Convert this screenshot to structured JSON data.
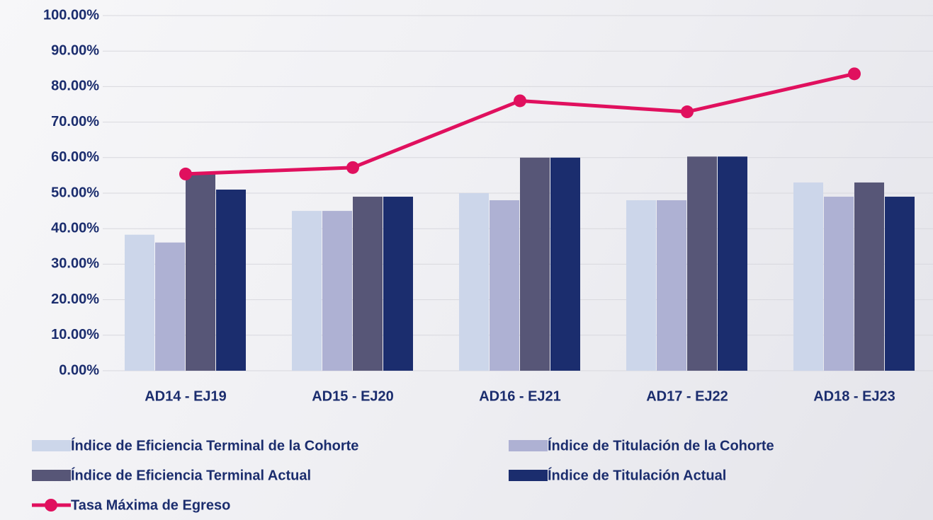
{
  "chart_data": {
    "type": "bar",
    "categories": [
      "AD14 - EJ19",
      "AD15 - EJ20",
      "AD16 - EJ21",
      "AD17 - EJ22",
      "AD18 - EJ23"
    ],
    "series": [
      {
        "name": "Índice de Eficiencia Terminal de la Cohorte",
        "color": "#ccd6ea",
        "values": [
          38.3,
          45,
          50,
          48,
          53
        ]
      },
      {
        "name": "Índice de Titulación de la Cohorte",
        "color": "#aeb1d3",
        "values": [
          36.1,
          45,
          48,
          48,
          49
        ]
      },
      {
        "name": "Índice de Eficiencia Terminal Actual",
        "color": "#575677",
        "values": [
          55.5,
          49,
          60,
          60.3,
          53
        ]
      },
      {
        "name": "Índice de Titulación Actual",
        "color": "#1b2d6e",
        "values": [
          51,
          49,
          60,
          60.3,
          49
        ]
      },
      {
        "name": "Tasa Máxima de Egreso",
        "color": "#e0105e",
        "type": "line",
        "values": [
          55.4,
          57.2,
          76,
          72.9,
          83.6
        ]
      }
    ],
    "ylim": [
      0,
      100
    ],
    "yticks": [
      {
        "value": 0,
        "label": "0.00%"
      },
      {
        "value": 10,
        "label": "10.00%"
      },
      {
        "value": 20,
        "label": "20.00%"
      },
      {
        "value": 30,
        "label": "30.00%"
      },
      {
        "value": 40,
        "label": "40.00%"
      },
      {
        "value": 50,
        "label": "50.00%"
      },
      {
        "value": 60,
        "label": "60.00%"
      },
      {
        "value": 70,
        "label": "70.00%"
      },
      {
        "value": 80,
        "label": "80.00%"
      },
      {
        "value": 90,
        "label": "90.00%"
      },
      {
        "value": 100,
        "label": "100.00%"
      }
    ],
    "grid": true,
    "legend": "bottom"
  }
}
